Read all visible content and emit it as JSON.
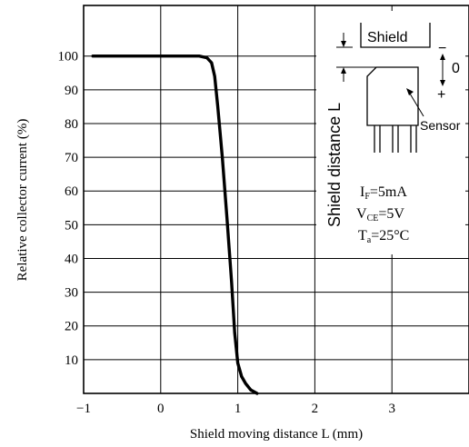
{
  "chart_data": {
    "type": "line",
    "title": "",
    "xlabel": "Shield moving distance L (mm)",
    "ylabel": "Relative collector current (%)",
    "xlim": [
      -1,
      4
    ],
    "ylim": [
      0,
      115
    ],
    "x_ticks": [
      -1,
      0,
      1,
      2,
      3
    ],
    "x_tick_labels": [
      "−1",
      "0",
      "1",
      "2",
      "3"
    ],
    "y_ticks": [
      10,
      20,
      30,
      40,
      50,
      60,
      70,
      80,
      90,
      100
    ],
    "grid": true,
    "series": [
      {
        "points": [
          [
            -0.88,
            100
          ],
          [
            0.1,
            100
          ],
          [
            0.5,
            100
          ],
          [
            0.6,
            99.5
          ],
          [
            0.66,
            98
          ],
          [
            0.7,
            94
          ],
          [
            0.74,
            85
          ],
          [
            0.8,
            70
          ],
          [
            0.86,
            52
          ],
          [
            0.92,
            33
          ],
          [
            0.96,
            18
          ],
          [
            1.0,
            9
          ],
          [
            1.05,
            5
          ],
          [
            1.1,
            3
          ],
          [
            1.17,
            1
          ],
          [
            1.25,
            0
          ]
        ]
      }
    ],
    "inset": {
      "shield_label": "Shield",
      "sensor_label": "Sensor",
      "distance_label": "Shield distance L",
      "minus_label": "−",
      "zero_label": "0",
      "plus_label": "+"
    },
    "conditions": [
      {
        "symbol": "I",
        "sub": "F",
        "value": "=5mA"
      },
      {
        "symbol": "V",
        "sub": "CE",
        "value": "=5V"
      },
      {
        "symbol": "T",
        "sub": "a",
        "value": "=25°C"
      }
    ]
  }
}
